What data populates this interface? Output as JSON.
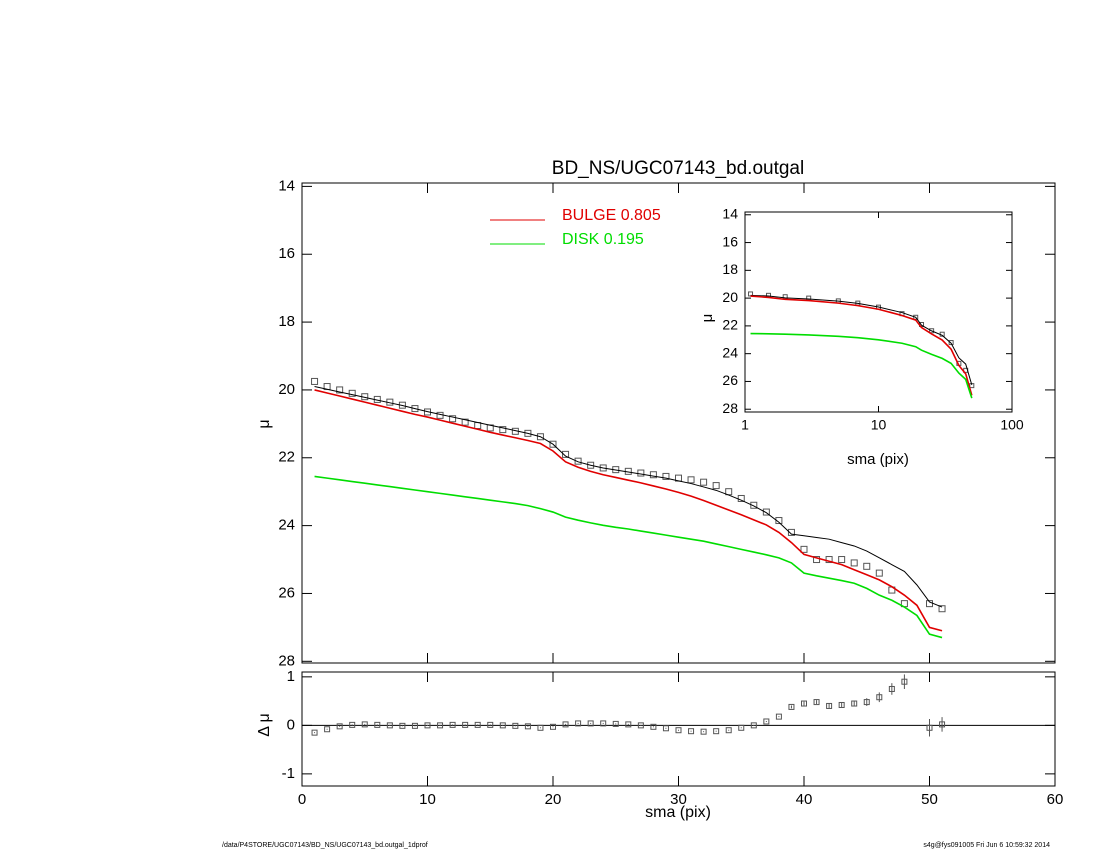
{
  "chart_data": [
    {
      "type": "line",
      "title": "BD_NS/UGC07143_bd.outgal",
      "y_label": "μ",
      "y_inverted": true,
      "xlim": [
        0,
        60
      ],
      "xticks": [
        0,
        10,
        20,
        30,
        40,
        50,
        60
      ],
      "ylim": [
        13.9,
        28.05
      ],
      "yticks": [
        14,
        16,
        18,
        20,
        22,
        24,
        26,
        28
      ],
      "x": [
        1,
        2,
        3,
        4,
        5,
        6,
        7,
        8,
        9,
        10,
        11,
        12,
        13,
        14,
        15,
        16,
        17,
        18,
        19,
        20,
        21,
        22,
        23,
        24,
        25,
        26,
        27,
        28,
        29,
        30,
        31,
        32,
        33,
        34,
        35,
        36,
        37,
        38,
        39,
        40,
        41,
        42,
        43,
        44,
        45,
        46,
        47,
        48,
        49,
        50,
        51
      ],
      "series": [
        {
          "style": "markers",
          "color": "#555555",
          "values": [
            19.75,
            19.9,
            20.0,
            20.1,
            20.2,
            20.28,
            20.36,
            20.45,
            20.55,
            20.65,
            20.75,
            20.85,
            20.95,
            21.05,
            21.12,
            21.17,
            21.22,
            21.28,
            21.38,
            21.6,
            21.9,
            22.1,
            22.22,
            22.3,
            22.35,
            22.4,
            22.45,
            22.5,
            22.55,
            22.6,
            22.65,
            22.72,
            22.82,
            23.0,
            23.2,
            23.4,
            23.6,
            23.85,
            24.2,
            24.7,
            25.0,
            25.0,
            25.0,
            25.1,
            25.2,
            25.4,
            25.9,
            26.3,
            null,
            26.3,
            26.45
          ]
        },
        {
          "style": "line",
          "color": "#000000",
          "values": [
            19.9,
            19.98,
            20.06,
            20.14,
            20.22,
            20.3,
            20.38,
            20.46,
            20.55,
            20.64,
            20.72,
            20.8,
            20.88,
            20.96,
            21.04,
            21.12,
            21.2,
            21.28,
            21.38,
            21.6,
            21.95,
            22.12,
            22.22,
            22.3,
            22.36,
            22.42,
            22.48,
            22.54,
            22.6,
            22.68,
            22.76,
            22.86,
            22.96,
            23.1,
            23.25,
            23.42,
            23.62,
            23.9,
            24.25,
            24.3,
            24.35,
            24.4,
            24.5,
            24.6,
            24.75,
            24.95,
            25.15,
            25.35,
            25.75,
            26.25,
            26.4
          ]
        },
        {
          "name": "BULGE  0.805",
          "style": "line",
          "color": "#e00000",
          "values": [
            20.0,
            20.09,
            20.18,
            20.27,
            20.36,
            20.45,
            20.54,
            20.63,
            20.72,
            20.8,
            20.89,
            20.98,
            21.07,
            21.16,
            21.25,
            21.33,
            21.41,
            21.49,
            21.58,
            21.8,
            22.12,
            22.28,
            22.4,
            22.5,
            22.58,
            22.66,
            22.74,
            22.83,
            22.92,
            23.02,
            23.13,
            23.26,
            23.4,
            23.54,
            23.68,
            23.83,
            23.98,
            24.2,
            24.5,
            24.85,
            24.95,
            25.05,
            25.15,
            25.3,
            25.45,
            25.6,
            25.8,
            26.05,
            26.35,
            27.0,
            27.1
          ]
        },
        {
          "name": "DISK  0.195",
          "style": "line",
          "color": "#00dd00",
          "values": [
            22.55,
            22.6,
            22.65,
            22.7,
            22.75,
            22.8,
            22.85,
            22.9,
            22.95,
            23.0,
            23.05,
            23.1,
            23.15,
            23.2,
            23.25,
            23.3,
            23.35,
            23.41,
            23.5,
            23.6,
            23.75,
            23.84,
            23.92,
            23.99,
            24.05,
            24.1,
            24.16,
            24.22,
            24.28,
            24.34,
            24.4,
            24.46,
            24.54,
            24.62,
            24.7,
            24.78,
            24.86,
            24.95,
            25.1,
            25.4,
            25.48,
            25.55,
            25.62,
            25.7,
            25.85,
            26.05,
            26.2,
            26.4,
            26.65,
            27.2,
            27.3
          ]
        }
      ]
    },
    {
      "type": "scatter",
      "x_label": "sma (pix)",
      "y_label": "Δ μ",
      "reference_line": 0,
      "xlim": [
        0,
        60
      ],
      "xticks": [
        0,
        10,
        20,
        30,
        40,
        50,
        60
      ],
      "ylim": [
        -1.25,
        1.1
      ],
      "yticks": [
        -1,
        0,
        1
      ],
      "color": "#555555",
      "x": [
        1,
        2,
        3,
        4,
        5,
        6,
        7,
        8,
        9,
        10,
        11,
        12,
        13,
        14,
        15,
        16,
        17,
        18,
        19,
        20,
        21,
        22,
        23,
        24,
        25,
        26,
        27,
        28,
        29,
        30,
        31,
        32,
        33,
        34,
        35,
        36,
        37,
        38,
        39,
        40,
        41,
        42,
        43,
        44,
        45,
        46,
        47,
        48,
        49,
        50,
        51
      ],
      "values": [
        -0.15,
        -0.08,
        -0.02,
        0.01,
        0.02,
        0.01,
        0.0,
        -0.01,
        -0.01,
        0.0,
        0.0,
        0.01,
        0.01,
        0.01,
        0.01,
        0.0,
        -0.01,
        -0.02,
        -0.05,
        -0.03,
        0.02,
        0.04,
        0.04,
        0.04,
        0.03,
        0.02,
        0.0,
        -0.03,
        -0.06,
        -0.1,
        -0.12,
        -0.13,
        -0.12,
        -0.1,
        -0.05,
        0.0,
        0.08,
        0.18,
        0.38,
        0.45,
        0.48,
        0.4,
        0.42,
        0.45,
        0.48,
        0.58,
        0.75,
        0.9,
        null,
        -0.05,
        0.02
      ],
      "errors": [
        0.01,
        0.01,
        0.01,
        0.01,
        0.01,
        0.01,
        0.01,
        0.01,
        0.01,
        0.01,
        0.01,
        0.01,
        0.01,
        0.01,
        0.01,
        0.01,
        0.01,
        0.01,
        0.01,
        0.01,
        0.01,
        0.01,
        0.01,
        0.01,
        0.01,
        0.01,
        0.01,
        0.01,
        0.01,
        0.01,
        0.01,
        0.01,
        0.01,
        0.01,
        0.01,
        0.01,
        0.01,
        0.01,
        0.03,
        0.04,
        0.04,
        0.05,
        0.06,
        0.06,
        0.08,
        0.1,
        0.12,
        0.15,
        null,
        0.18,
        0.15
      ]
    },
    {
      "type": "line",
      "x_label": "sma (pix)",
      "y_label": "μ",
      "y_inverted": true,
      "xlog": true,
      "xlim": [
        1,
        100
      ],
      "xticks": [
        1,
        10,
        100
      ],
      "ylim": [
        13.8,
        28.2
      ],
      "yticks": [
        14,
        16,
        18,
        20,
        22,
        24,
        26,
        28
      ],
      "x": [
        1.1,
        1.5,
        2,
        3,
        5,
        7,
        10,
        15,
        19,
        21,
        25,
        30,
        35,
        40,
        45,
        50
      ],
      "series": [
        {
          "style": "markers",
          "color": "#555555",
          "values": [
            19.7,
            19.8,
            19.9,
            20.0,
            20.2,
            20.36,
            20.65,
            21.12,
            21.38,
            21.9,
            22.35,
            22.6,
            23.2,
            24.7,
            25.2,
            26.3
          ]
        },
        {
          "style": "line",
          "color": "#000000",
          "values": [
            19.8,
            19.85,
            19.98,
            20.06,
            20.22,
            20.38,
            20.64,
            21.04,
            21.38,
            21.95,
            22.36,
            22.68,
            23.25,
            24.3,
            24.75,
            26.25
          ]
        },
        {
          "style": "line",
          "color": "#e00000",
          "values": [
            19.85,
            19.95,
            20.09,
            20.18,
            20.36,
            20.54,
            20.8,
            21.25,
            21.58,
            22.12,
            22.58,
            23.02,
            23.68,
            24.85,
            25.45,
            27.0
          ]
        },
        {
          "style": "line",
          "color": "#00dd00",
          "values": [
            22.55,
            22.57,
            22.6,
            22.65,
            22.75,
            22.85,
            23.0,
            23.25,
            23.5,
            23.75,
            24.05,
            24.34,
            24.7,
            25.4,
            25.85,
            27.2
          ]
        }
      ]
    }
  ],
  "footer": {
    "left": "/data/P4STORE/UGC07143/BD_NS/UGC07143_bd.outgal_1dprof",
    "right": "s4g@fys091005  Fri Jun  6 10:59:32 2014"
  }
}
